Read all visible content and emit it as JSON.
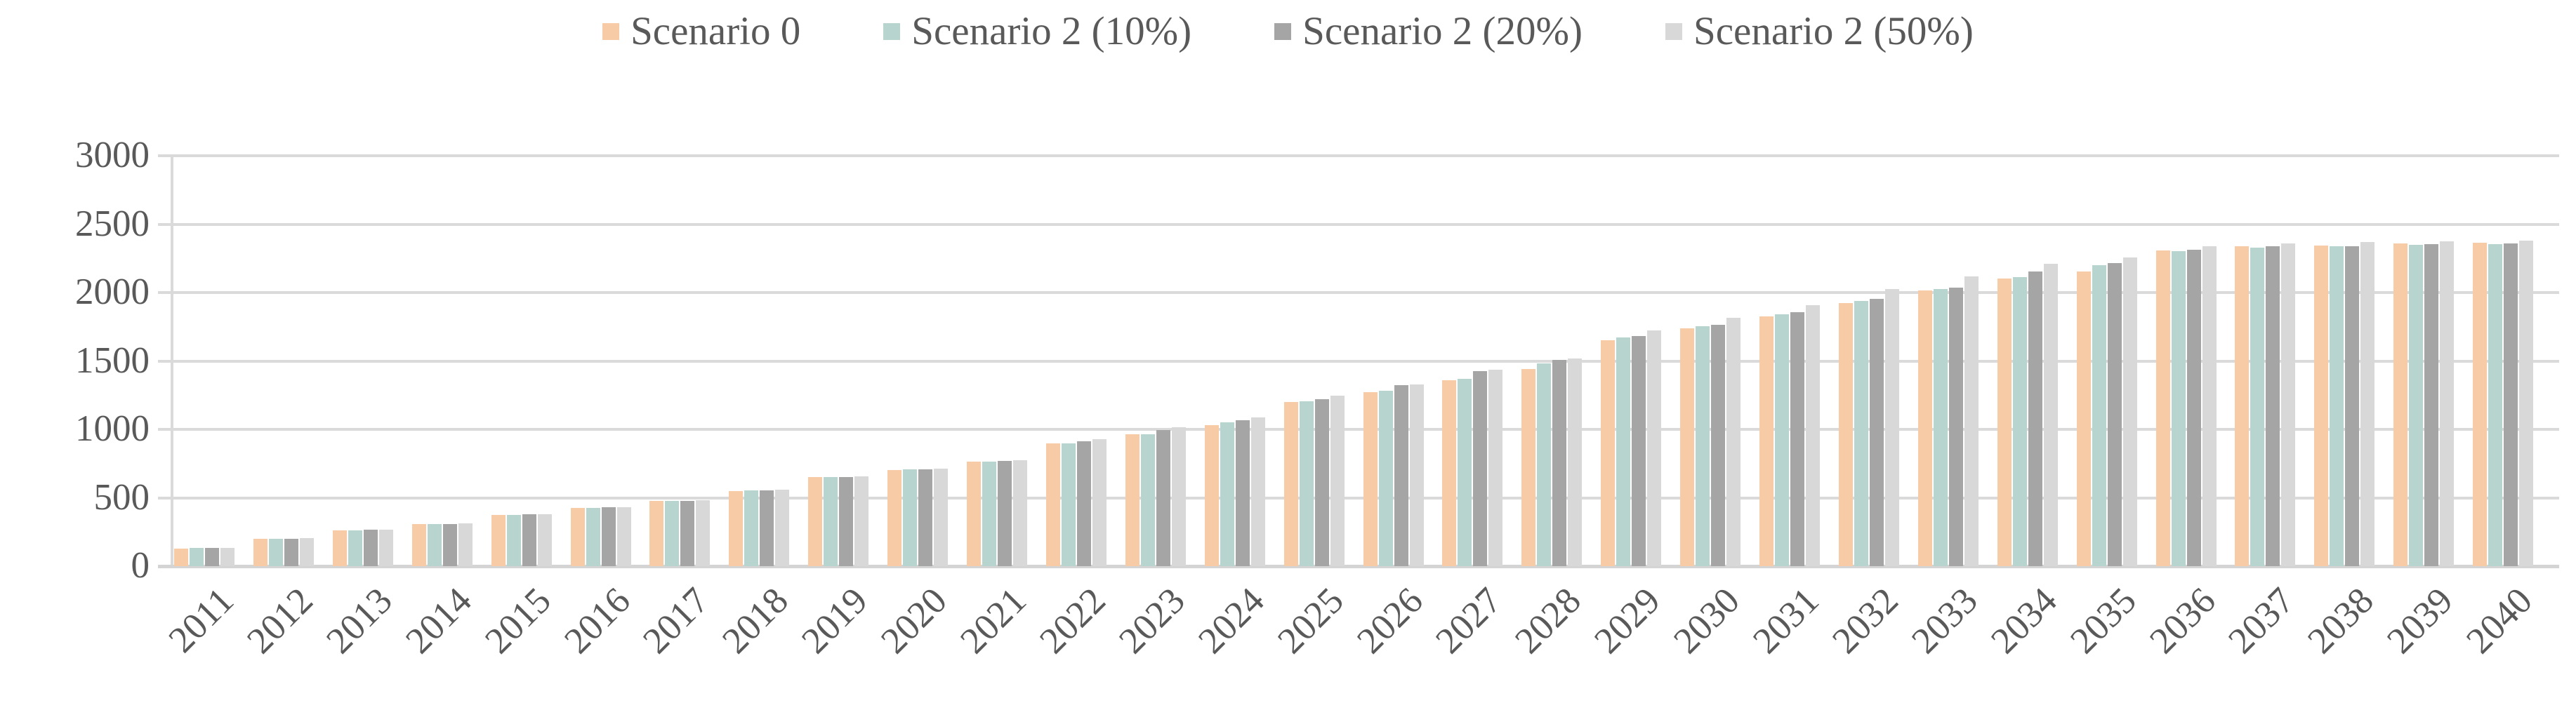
{
  "legend": {
    "items": [
      {
        "label": "Scenario 0",
        "color": "#F7CBA6"
      },
      {
        "label": "Scenario 2 (10%)",
        "color": "#B8D4CE"
      },
      {
        "label": "Scenario 2 (20%)",
        "color": "#A5A5A5"
      },
      {
        "label": "Scenario 2 (50%)",
        "color": "#D8D8D8"
      }
    ]
  },
  "chart_data": {
    "type": "bar",
    "title": "",
    "xlabel": "",
    "ylabel": "",
    "ylim": [
      0,
      3000
    ],
    "yticks": [
      0,
      500,
      1000,
      1500,
      2000,
      2500,
      3000
    ],
    "grid": true,
    "gridline_color": "#DADADA",
    "text_color": "#595959",
    "legend_position": "top",
    "categories": [
      "2011",
      "2012",
      "2013",
      "2014",
      "2015",
      "2016",
      "2017",
      "2018",
      "2019",
      "2020",
      "2021",
      "2022",
      "2023",
      "2024",
      "2025",
      "2026",
      "2027",
      "2028",
      "2029",
      "2030",
      "2031",
      "2032",
      "2033",
      "2034",
      "2035",
      "2036",
      "2037",
      "2038",
      "2039",
      "2040"
    ],
    "series": [
      {
        "name": "Scenario 0",
        "color": "#F7CBA6",
        "values": [
          130,
          198,
          262,
          306,
          374,
          425,
          475,
          551,
          649,
          704,
          762,
          896,
          962,
          1031,
          1198,
          1272,
          1358,
          1440,
          1650,
          1738,
          1827,
          1923,
          2013,
          2104,
          2156,
          2308,
          2340,
          2345,
          2359,
          2363
        ]
      },
      {
        "name": "Scenario 2 (10%)",
        "color": "#B8D4CE",
        "values": [
          131,
          199,
          263,
          307,
          376,
          427,
          477,
          553,
          651,
          706,
          765,
          899,
          966,
          1050,
          1206,
          1283,
          1368,
          1483,
          1670,
          1754,
          1839,
          1936,
          2024,
          2113,
          2202,
          2304,
          2330,
          2336,
          2348,
          2353
        ]
      },
      {
        "name": "Scenario 2 (20%)",
        "color": "#A5A5A5",
        "values": [
          132,
          201,
          265,
          309,
          378,
          429,
          479,
          555,
          653,
          708,
          768,
          911,
          993,
          1067,
          1218,
          1322,
          1428,
          1510,
          1680,
          1766,
          1854,
          1952,
          2036,
          2156,
          2214,
          2313,
          2337,
          2340,
          2352,
          2357
        ]
      },
      {
        "name": "Scenario 2 (50%)",
        "color": "#D8D8D8",
        "values": [
          133,
          203,
          267,
          312,
          381,
          433,
          484,
          559,
          657,
          712,
          772,
          928,
          1014,
          1088,
          1244,
          1329,
          1434,
          1517,
          1722,
          1815,
          1906,
          2027,
          2119,
          2210,
          2255,
          2340,
          2361,
          2368,
          2376,
          2381
        ]
      }
    ]
  }
}
